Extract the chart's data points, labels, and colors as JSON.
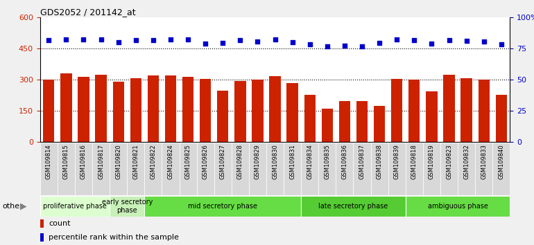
{
  "title": "GDS2052 / 201142_at",
  "samples": [
    "GSM109814",
    "GSM109815",
    "GSM109816",
    "GSM109817",
    "GSM109820",
    "GSM109821",
    "GSM109822",
    "GSM109824",
    "GSM109825",
    "GSM109826",
    "GSM109827",
    "GSM109828",
    "GSM109829",
    "GSM109830",
    "GSM109831",
    "GSM109834",
    "GSM109835",
    "GSM109836",
    "GSM109837",
    "GSM109838",
    "GSM109839",
    "GSM109818",
    "GSM109819",
    "GSM109823",
    "GSM109832",
    "GSM109833",
    "GSM109840"
  ],
  "counts": [
    300,
    330,
    313,
    325,
    290,
    307,
    320,
    320,
    315,
    302,
    248,
    295,
    300,
    318,
    285,
    228,
    160,
    198,
    198,
    173,
    305,
    300,
    245,
    322,
    307,
    300,
    228
  ],
  "percentiles": [
    81.5,
    82.3,
    82.0,
    82.0,
    80.0,
    81.5,
    81.5,
    82.3,
    82.0,
    79.0,
    79.5,
    81.5,
    80.3,
    82.2,
    80.0,
    78.3,
    76.7,
    77.0,
    76.7,
    79.5,
    82.0,
    81.5,
    79.0,
    81.5,
    80.8,
    80.5,
    78.3
  ],
  "bar_color": "#cc2200",
  "dot_color": "#0000cc",
  "ylim_left": [
    0,
    600
  ],
  "ylim_right": [
    0,
    100
  ],
  "yticks_left": [
    0,
    150,
    300,
    450,
    600
  ],
  "yticks_right": [
    0,
    25,
    50,
    75,
    100
  ],
  "ytick_labels_right": [
    "0",
    "25",
    "50",
    "75",
    "100%"
  ],
  "phases": [
    {
      "label": "proliferative phase",
      "start": 0,
      "end": 4,
      "color": "#ddffd0"
    },
    {
      "label": "early secretory\nphase",
      "start": 4,
      "end": 6,
      "color": "#c8f0b8"
    },
    {
      "label": "mid secretory phase",
      "start": 6,
      "end": 15,
      "color": "#66dd44"
    },
    {
      "label": "late secretory phase",
      "start": 15,
      "end": 21,
      "color": "#55cc33"
    },
    {
      "label": "ambiguous phase",
      "start": 21,
      "end": 27,
      "color": "#66dd44"
    }
  ],
  "other_label": "other",
  "legend_count_label": "count",
  "legend_pct_label": "percentile rank within the sample",
  "background_color": "#f0f0f0",
  "plot_bg_color": "#ffffff",
  "xlabel_bg_color": "#d8d8d8"
}
